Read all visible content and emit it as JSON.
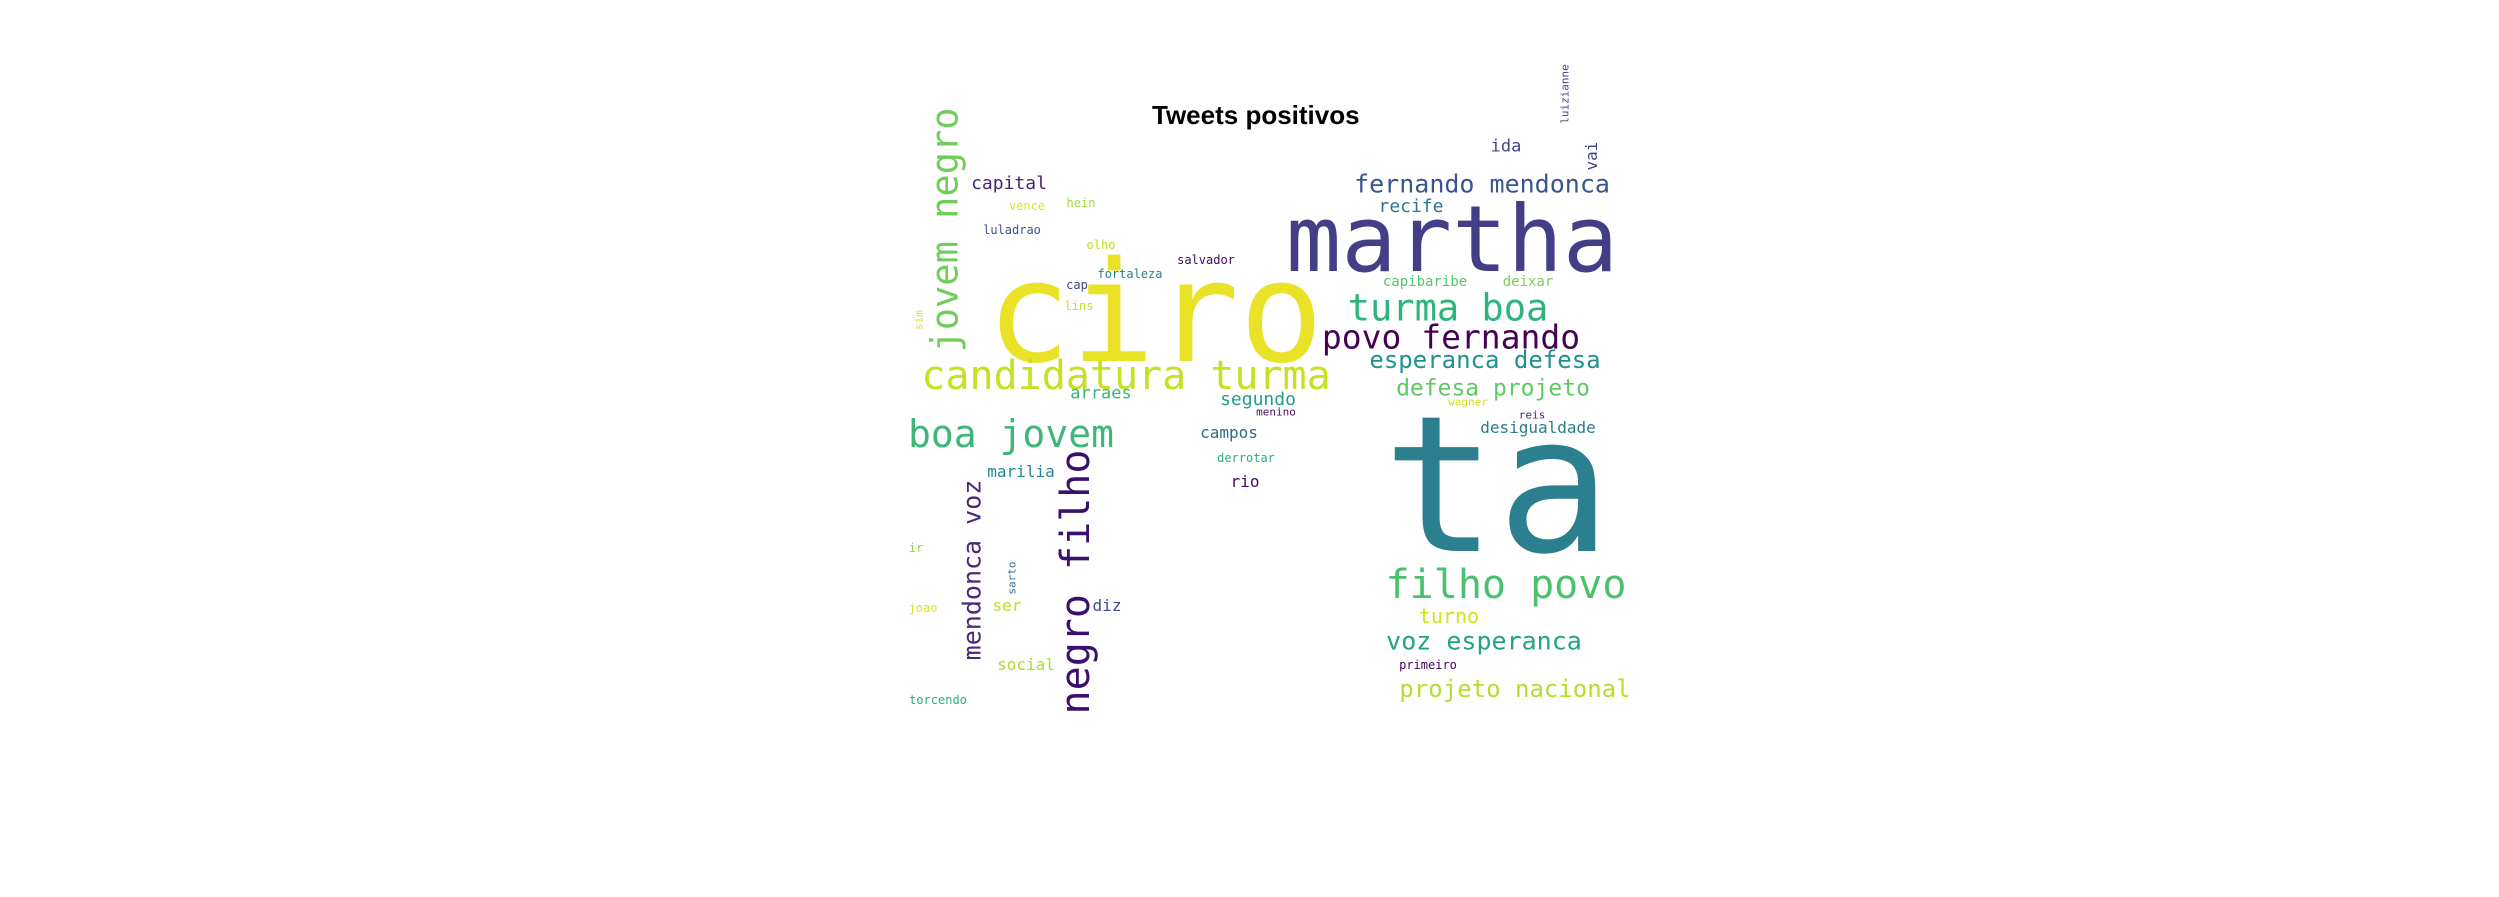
{
  "chart_data": {
    "type": "wordcloud",
    "title": "Tweets positivos",
    "background": "#ffffff",
    "colormap": "viridis",
    "words": [
      {
        "text": "ta",
        "size": 190,
        "color": "#2c7f8e",
        "rot": 0
      },
      {
        "text": "ciro",
        "size": 140,
        "color": "#e9e227",
        "rot": 0
      },
      {
        "text": "martha",
        "size": 92,
        "color": "#433e85",
        "rot": 0
      },
      {
        "text": "candidatura turma",
        "size": 40,
        "color": "#c7e022",
        "rot": 0
      },
      {
        "text": "boa jovem",
        "size": 38,
        "color": "#3eb679",
        "rot": 0
      },
      {
        "text": "filho povo",
        "size": 40,
        "color": "#4ac16d",
        "rot": 0
      },
      {
        "text": "turma boa",
        "size": 37,
        "color": "#2fb47c",
        "rot": 0
      },
      {
        "text": "povo fernando",
        "size": 33,
        "color": "#440154",
        "rot": 0
      },
      {
        "text": "jovem negro",
        "size": 37,
        "color": "#6ece58",
        "rot": -90
      },
      {
        "text": "negro filho",
        "size": 40,
        "color": "#3b0f70",
        "rot": -90
      },
      {
        "text": "fernando mendonca",
        "size": 25,
        "color": "#39568c",
        "rot": 0
      },
      {
        "text": "esperanca defesa",
        "size": 24,
        "color": "#21918c",
        "rot": 0
      },
      {
        "text": "defesa projeto",
        "size": 23,
        "color": "#5ec962",
        "rot": 0
      },
      {
        "text": "voz esperanca",
        "size": 25,
        "color": "#20a486",
        "rot": 0
      },
      {
        "text": "projeto nacional",
        "size": 24,
        "color": "#b5de2b",
        "rot": 0
      },
      {
        "text": "mendonca voz",
        "size": 25,
        "color": "#482878",
        "rot": -90
      },
      {
        "text": "turno",
        "size": 20,
        "color": "#d2e21b",
        "rot": 0
      },
      {
        "text": "capital",
        "size": 18,
        "color": "#482475",
        "rot": 0
      },
      {
        "text": "recife",
        "size": 18,
        "color": "#2a788e",
        "rot": 0
      },
      {
        "text": "ida",
        "size": 17,
        "color": "#414487",
        "rot": 0
      },
      {
        "text": "segundo",
        "size": 18,
        "color": "#1f9e89",
        "rot": 0
      },
      {
        "text": "arraes",
        "size": 17,
        "color": "#35b779",
        "rot": 0
      },
      {
        "text": "campos",
        "size": 16,
        "color": "#31688e",
        "rot": 0
      },
      {
        "text": "rio",
        "size": 16,
        "color": "#46085c",
        "rot": 0
      },
      {
        "text": "marilia",
        "size": 16,
        "color": "#23898e",
        "rot": 0
      },
      {
        "text": "desigualdade",
        "size": 16,
        "color": "#287c8e",
        "rot": 0
      },
      {
        "text": "diz",
        "size": 16,
        "color": "#3e4a89",
        "rot": 0
      },
      {
        "text": "ser",
        "size": 16,
        "color": "#b8de29",
        "rot": 0
      },
      {
        "text": "social",
        "size": 16,
        "color": "#addc30",
        "rot": 0
      },
      {
        "text": "vai",
        "size": 16,
        "color": "#414487",
        "rot": -90
      },
      {
        "text": "capibaribe",
        "size": 14,
        "color": "#54c568",
        "rot": 0
      },
      {
        "text": "deixar",
        "size": 14,
        "color": "#7ad151",
        "rot": 0
      },
      {
        "text": "salvador",
        "size": 12,
        "color": "#46085c",
        "rot": 0
      },
      {
        "text": "fortaleza",
        "size": 12,
        "color": "#26828e",
        "rot": 0
      },
      {
        "text": "luladrao",
        "size": 12,
        "color": "#3b528b",
        "rot": 0
      },
      {
        "text": "vence",
        "size": 12,
        "color": "#dde318",
        "rot": 0
      },
      {
        "text": "hein",
        "size": 12,
        "color": "#a0da39",
        "rot": 0
      },
      {
        "text": "olho",
        "size": 12,
        "color": "#bddf26",
        "rot": 0
      },
      {
        "text": "cap",
        "size": 12,
        "color": "#3e4989",
        "rot": 0
      },
      {
        "text": "lins",
        "size": 12,
        "color": "#c2df23",
        "rot": 0
      },
      {
        "text": "menino",
        "size": 11,
        "color": "#471063",
        "rot": 0
      },
      {
        "text": "wagner",
        "size": 11,
        "color": "#d0e11c",
        "rot": 0
      },
      {
        "text": "reis",
        "size": 11,
        "color": "#482173",
        "rot": 0
      },
      {
        "text": "derrotar",
        "size": 12,
        "color": "#29af7f",
        "rot": 0
      },
      {
        "text": "primeiro",
        "size": 12,
        "color": "#440154",
        "rot": 0
      },
      {
        "text": "ir",
        "size": 12,
        "color": "#90d743",
        "rot": 0
      },
      {
        "text": "joao",
        "size": 12,
        "color": "#dde318",
        "rot": 0
      },
      {
        "text": "torcendo",
        "size": 12,
        "color": "#29af7f",
        "rot": 0
      },
      {
        "text": "sarto",
        "size": 11,
        "color": "#2d708e",
        "rot": -90
      },
      {
        "text": "sim",
        "size": 11,
        "color": "#d8e219",
        "rot": -90
      },
      {
        "text": "luizianne",
        "size": 11,
        "color": "#3f4788",
        "rot": -90
      }
    ]
  }
}
